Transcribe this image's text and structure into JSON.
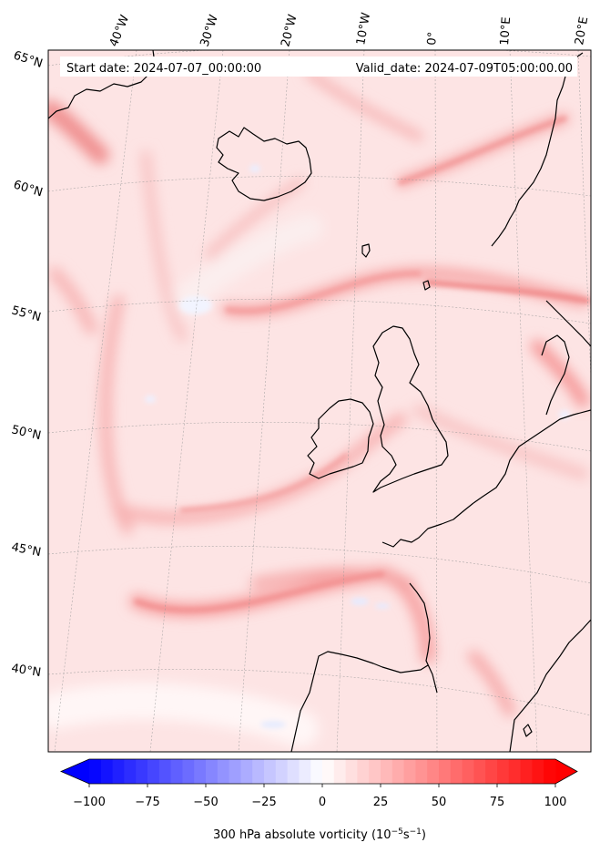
{
  "header": {
    "start_date": "Start date: 2024-07-07_00:00:00",
    "valid_date": "Valid_date: 2024-07-09T05:00:00.00"
  },
  "map": {
    "field": "300 hPa absolute vorticity",
    "colormap": "bwr",
    "lon_labels": [
      "40°W",
      "30°W",
      "20°W",
      "10°W",
      "0°",
      "10°E",
      "20°E"
    ],
    "lat_labels": [
      "65°N",
      "60°N",
      "55°N",
      "50°N",
      "45°N",
      "40°N"
    ],
    "gridlines": true
  },
  "colorbar": {
    "title_prefix": "300 hPa absolute vorticity (10",
    "title_exp1": "−5",
    "title_mid": "s",
    "title_exp2": "−1",
    "title_suffix": ")",
    "ticks": [
      "−100",
      "−75",
      "−50",
      "−25",
      "0",
      "25",
      "50",
      "75",
      "100"
    ],
    "min": -100,
    "max": 100,
    "extend": "both"
  }
}
